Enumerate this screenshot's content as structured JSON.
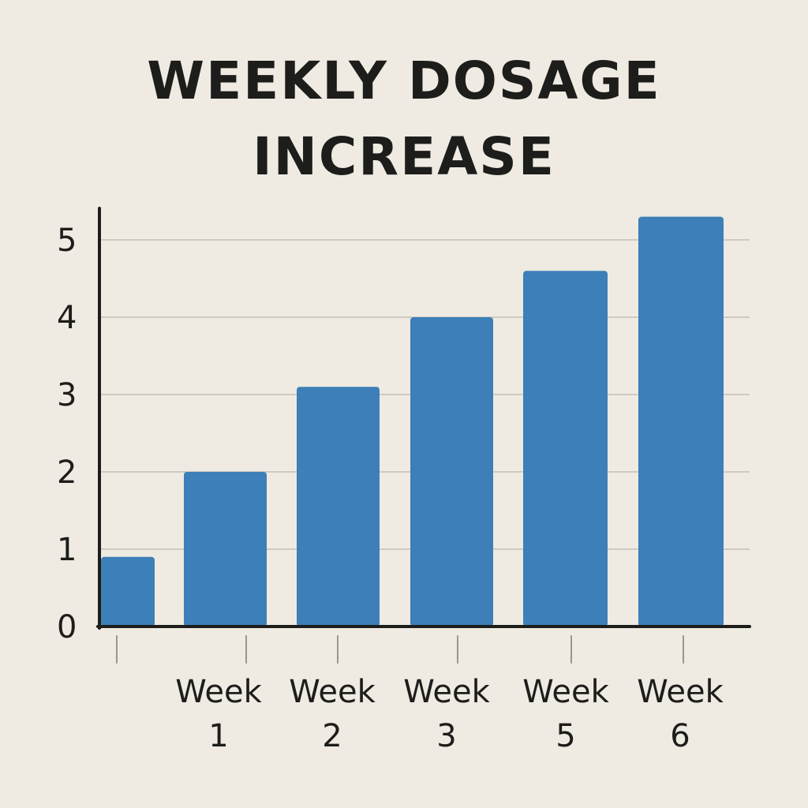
{
  "chart_data": {
    "type": "bar",
    "title_lines": [
      "WEEKLY DOSAGE",
      "INCREASE"
    ],
    "categories": [
      [
        "",
        ""
      ],
      [
        "Week",
        "1"
      ],
      [
        "Week",
        "2"
      ],
      [
        "Week",
        "3"
      ],
      [
        "Week",
        "5"
      ],
      [
        "Week",
        "6"
      ]
    ],
    "values": [
      0.9,
      2.0,
      3.1,
      4.0,
      4.6,
      5.3
    ],
    "yticks": [
      "0",
      "1",
      "2",
      "3",
      "4",
      "5"
    ],
    "ylim": [
      0,
      5.5
    ],
    "xlabel": "",
    "ylabel": "",
    "grid": true,
    "bar_color": "#3d7fb8",
    "grid_color": "#cfcbc2",
    "axis_color": "#1d1d1b"
  }
}
